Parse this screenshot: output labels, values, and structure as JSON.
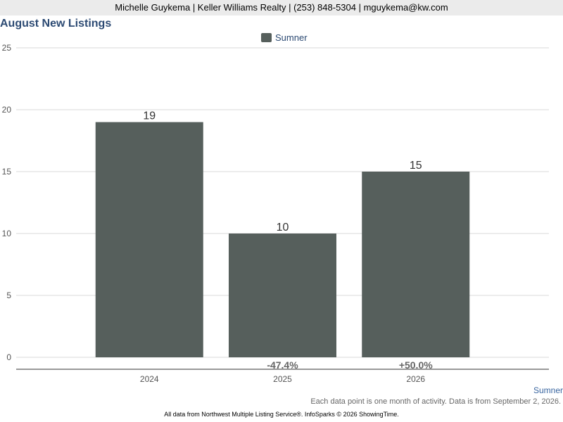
{
  "header": {
    "contact": "Michelle Guykema | Keller Williams Realty | (253) 848-5304 | mguykema@kw.com"
  },
  "chart_data": {
    "type": "bar",
    "title": "August New Listings",
    "categories": [
      "2024",
      "2025",
      "2026"
    ],
    "series": [
      {
        "name": "Sumner",
        "values": [
          19,
          10,
          15
        ],
        "color": "#565f5c"
      }
    ],
    "changes": [
      "",
      "-47.4%",
      "+50.0%"
    ],
    "ylim": [
      0,
      25
    ],
    "yticks": [
      0,
      5,
      10,
      15,
      20,
      25
    ],
    "grid": true,
    "legend": "top-center"
  },
  "footer": {
    "series_label": "Sumner",
    "note": "Each data point is one month of activity. Data is from September 2, 2026.",
    "credit": "All data from Northwest Multiple Listing Service®. InfoSparks © 2026 ShowingTime."
  }
}
